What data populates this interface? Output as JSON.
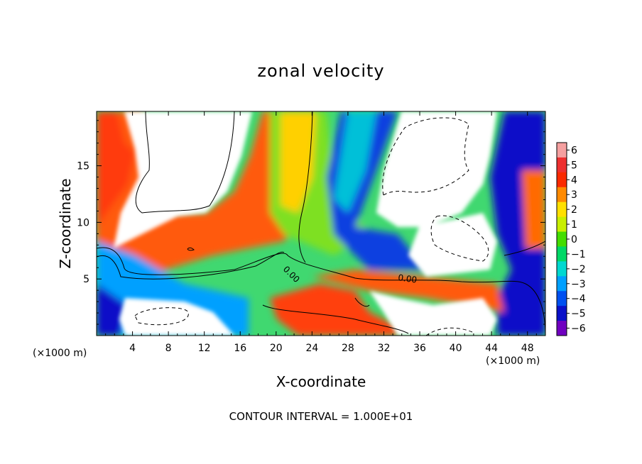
{
  "chart_data": {
    "type": "heatmap",
    "title": "zonal velocity",
    "xlabel": "X-coordinate",
    "ylabel": "Z-coordinate",
    "x_unit_label": "(×1000 m)",
    "footer": "CONTOUR INTERVAL = 1.000E+01",
    "xlim": [
      0,
      50
    ],
    "ylim": [
      0,
      19.8
    ],
    "x_ticks": [
      4,
      8,
      12,
      16,
      20,
      24,
      28,
      32,
      36,
      40,
      44,
      48
    ],
    "y_ticks": [
      5,
      10,
      15
    ],
    "colorbar": {
      "levels": [
        6,
        5,
        4,
        3,
        2,
        1,
        0,
        -1,
        -2,
        -3,
        -4,
        -5,
        -6
      ],
      "colors": [
        "#f5a0a0",
        "#ee3030",
        "#fa2a00",
        "#ff8a00",
        "#ffe000",
        "#c8ef00",
        "#44dd00",
        "#00d866",
        "#00d8d0",
        "#00a0ff",
        "#0050f0",
        "#0a10c8",
        "#7000c0"
      ],
      "range": [
        -6,
        6
      ]
    },
    "contour_labels": [
      {
        "text": "0.00",
        "x": 21.4,
        "z": 5.6,
        "rotate": 45
      },
      {
        "text": "0.00",
        "x": 34.4,
        "z": 5.0,
        "rotate": 8
      }
    ],
    "grid": false,
    "legend": "colorbar on right"
  }
}
